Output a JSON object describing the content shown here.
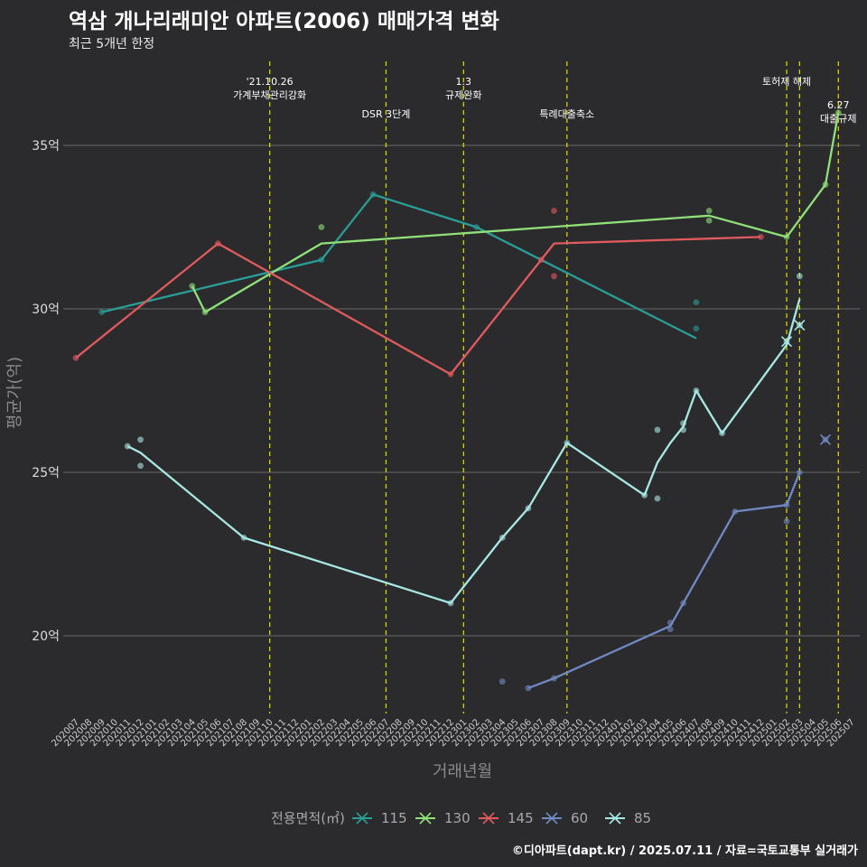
{
  "chart_data": {
    "type": "line",
    "title": "역삼 개나리래미안 아파트(2006) 매매가격 변화",
    "subtitle": "최근 5개년 한정",
    "xlabel": "거래년월",
    "ylabel": "평균가(억)",
    "caption": "©디아파트(dapt.kr) / 2025.07.11 / 자료=국토교통부 실거래가",
    "x_range": [
      "202007",
      "202507"
    ],
    "ylim": [
      17.5,
      37.5
    ],
    "yticks": [
      20,
      25,
      30,
      35
    ],
    "ytick_labels": [
      "20억",
      "25억",
      "30억",
      "35억"
    ],
    "xticks": [
      "202007",
      "202008",
      "202009",
      "202010",
      "202011",
      "202012",
      "202101",
      "202102",
      "202103",
      "202104",
      "202105",
      "202106",
      "202107",
      "202108",
      "202109",
      "202110",
      "202111",
      "202112",
      "202201",
      "202202",
      "202203",
      "202204",
      "202205",
      "202206",
      "202207",
      "202208",
      "202209",
      "202210",
      "202211",
      "202212",
      "202301",
      "202302",
      "202303",
      "202304",
      "202305",
      "202306",
      "202307",
      "202308",
      "202309",
      "202310",
      "202311",
      "202312",
      "202401",
      "202402",
      "202403",
      "202404",
      "202405",
      "202406",
      "202407",
      "202408",
      "202409",
      "202410",
      "202411",
      "202412",
      "202501",
      "202502",
      "202503",
      "202504",
      "202505",
      "202506",
      "202507"
    ],
    "grid": true,
    "legend": {
      "title": "전용면적(㎡)",
      "position": "bottom"
    },
    "events": [
      {
        "x": "202110",
        "lines": [
          "'21.10.26",
          "가계부채관리강화"
        ],
        "level": 1
      },
      {
        "x": "202207",
        "lines": [
          "DSR 3단계"
        ],
        "level": 2
      },
      {
        "x": "202301",
        "lines": [
          "1.3",
          "규제완화"
        ],
        "level": 1
      },
      {
        "x": "202309",
        "lines": [
          "특례대출축소"
        ],
        "level": 2
      },
      {
        "x": "202502",
        "lines": [
          "토허제 해제"
        ],
        "level": 1
      },
      {
        "x": "202503",
        "lines": [],
        "level": 1
      },
      {
        "x": "202506",
        "lines": [
          "6.27",
          "대출규제"
        ],
        "level": 3
      }
    ],
    "series": [
      {
        "name": "115",
        "color": "#2a9d96",
        "line": [
          [
            "202009",
            29.9
          ],
          [
            "202202",
            31.5
          ],
          [
            "202206",
            33.5
          ],
          [
            "202302",
            32.5
          ],
          [
            "202407",
            29.1
          ]
        ],
        "points": [
          [
            "202009",
            29.9
          ],
          [
            "202202",
            31.5
          ],
          [
            "202206",
            33.5
          ],
          [
            "202302",
            32.5
          ],
          [
            "202407",
            30.2
          ],
          [
            "202407",
            29.4
          ]
        ]
      },
      {
        "name": "130",
        "color": "#90e07a",
        "line": [
          [
            "202104",
            30.7
          ],
          [
            "202105",
            29.9
          ],
          [
            "202202",
            32.0
          ],
          [
            "202408",
            32.85
          ],
          [
            "202502",
            32.2
          ],
          [
            "202505",
            33.8
          ],
          [
            "202506",
            36.0
          ]
        ],
        "points": [
          [
            "202104",
            30.7
          ],
          [
            "202105",
            29.9
          ],
          [
            "202202",
            32.5
          ],
          [
            "202408",
            33.0
          ],
          [
            "202408",
            32.7
          ],
          [
            "202502",
            32.2
          ],
          [
            "202505",
            33.8
          ],
          [
            "202506",
            36.0
          ]
        ]
      },
      {
        "name": "145",
        "color": "#e05a5e",
        "line": [
          [
            "202007",
            28.5
          ],
          [
            "202106",
            32.0
          ],
          [
            "202212",
            28.0
          ],
          [
            "202308",
            32.0
          ],
          [
            "202412",
            32.2
          ]
        ],
        "points": [
          [
            "202007",
            28.5
          ],
          [
            "202106",
            32.0
          ],
          [
            "202212",
            28.0
          ],
          [
            "202308",
            33.0
          ],
          [
            "202308",
            31.0
          ],
          [
            "202307",
            31.5
          ],
          [
            "202412",
            32.2
          ]
        ]
      },
      {
        "name": "60",
        "color": "#7189c2",
        "line": [
          [
            "202306",
            18.4
          ],
          [
            "202308",
            18.7
          ],
          [
            "202405",
            20.3
          ],
          [
            "202406",
            21.0
          ],
          [
            "202410",
            23.8
          ],
          [
            "202502",
            24.0
          ],
          [
            "202503",
            25.0
          ]
        ],
        "points": [
          [
            "202304",
            18.6
          ],
          [
            "202306",
            18.4
          ],
          [
            "202308",
            18.7
          ],
          [
            "202405",
            20.4
          ],
          [
            "202405",
            20.2
          ],
          [
            "202406",
            21.0
          ],
          [
            "202410",
            23.8
          ],
          [
            "202502",
            24.0
          ],
          [
            "202502",
            23.5
          ],
          [
            "202503",
            25.0
          ],
          [
            "202505",
            26.0
          ]
        ]
      },
      {
        "name": "85",
        "color": "#a8e8e4",
        "line": [
          [
            "202011",
            25.8
          ],
          [
            "202012",
            25.6
          ],
          [
            "202108",
            23.0
          ],
          [
            "202212",
            21.0
          ],
          [
            "202304",
            23.0
          ],
          [
            "202306",
            23.9
          ],
          [
            "202309",
            25.9
          ],
          [
            "202403",
            24.3
          ],
          [
            "202404",
            25.3
          ],
          [
            "202405",
            25.9
          ],
          [
            "202406",
            26.4
          ],
          [
            "202407",
            27.5
          ],
          [
            "202409",
            26.2
          ],
          [
            "202502",
            28.9
          ],
          [
            "202503",
            30.3
          ]
        ],
        "points": [
          [
            "202011",
            25.8
          ],
          [
            "202012",
            26.0
          ],
          [
            "202012",
            25.2
          ],
          [
            "202108",
            23.0
          ],
          [
            "202212",
            21.0
          ],
          [
            "202304",
            23.0
          ],
          [
            "202306",
            23.9
          ],
          [
            "202309",
            25.9
          ],
          [
            "202403",
            24.3
          ],
          [
            "202404",
            26.3
          ],
          [
            "202404",
            24.2
          ],
          [
            "202406",
            26.5
          ],
          [
            "202406",
            26.3
          ],
          [
            "202407",
            27.5
          ],
          [
            "202409",
            26.2
          ],
          [
            "202502",
            29.0
          ],
          [
            "202503",
            31.0
          ],
          [
            "202503",
            29.5
          ]
        ]
      }
    ],
    "cross_markers": [
      {
        "series": "85",
        "x": "202502",
        "y": 29.0
      },
      {
        "series": "85",
        "x": "202503",
        "y": 29.5
      },
      {
        "series": "60",
        "x": "202505",
        "y": 26.0
      }
    ]
  }
}
